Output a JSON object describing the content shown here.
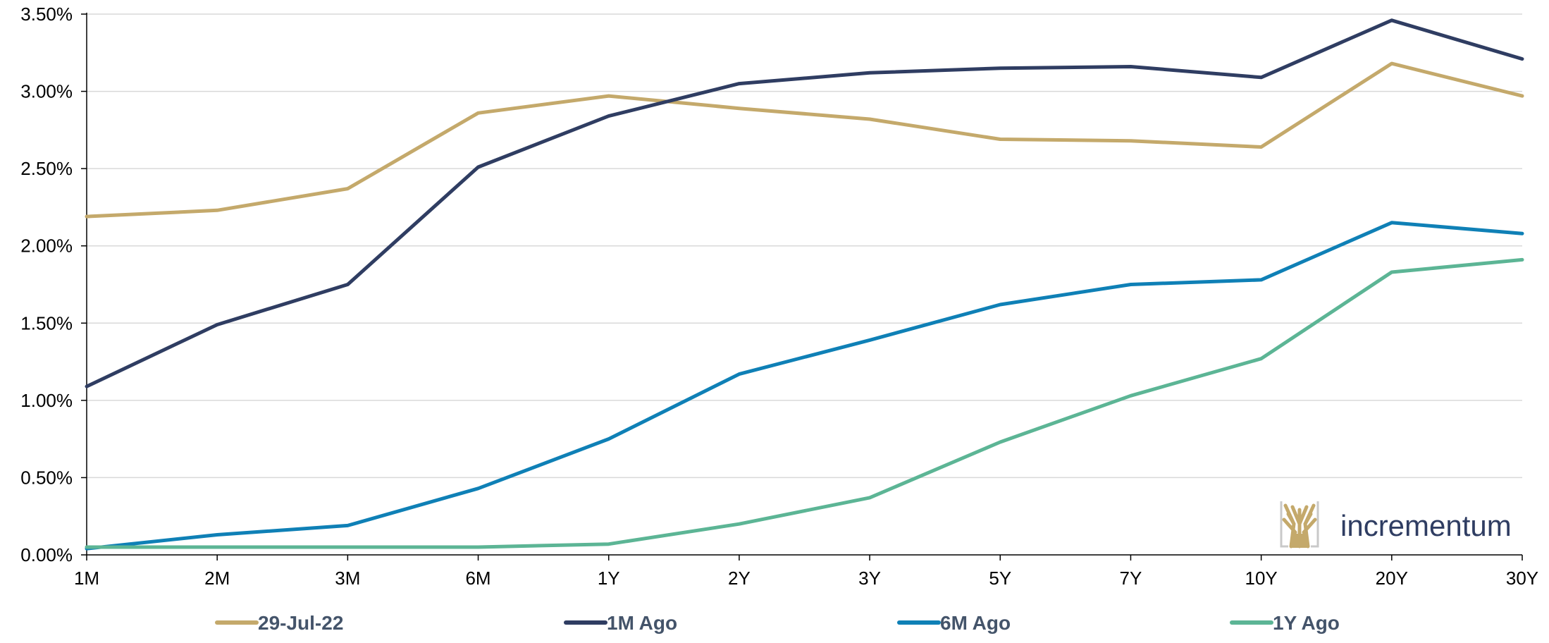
{
  "chart_data": {
    "type": "line",
    "categories": [
      "1M",
      "2M",
      "3M",
      "6M",
      "1Y",
      "2Y",
      "3Y",
      "5Y",
      "7Y",
      "10Y",
      "20Y",
      "30Y"
    ],
    "ylim": [
      0,
      3.5
    ],
    "yticks": [
      0,
      0.5,
      1.0,
      1.5,
      2.0,
      2.5,
      3.0,
      3.5
    ],
    "ytick_labels": [
      "0.00%",
      "0.50%",
      "1.00%",
      "1.50%",
      "2.00%",
      "2.50%",
      "3.00%",
      "3.50%"
    ],
    "grid": "horizontal",
    "legend_position": "bottom",
    "series": [
      {
        "name": "29-Jul-22",
        "color": "#c4a96b",
        "values": [
          2.19,
          2.23,
          2.37,
          2.86,
          2.97,
          2.89,
          2.82,
          2.69,
          2.68,
          2.64,
          3.18,
          2.97
        ]
      },
      {
        "name": "1M Ago",
        "color": "#2f3d62",
        "values": [
          1.09,
          1.49,
          1.75,
          2.51,
          2.84,
          3.05,
          3.12,
          3.15,
          3.16,
          3.09,
          3.46,
          3.21
        ]
      },
      {
        "name": "6M Ago",
        "color": "#0f80b6",
        "values": [
          0.04,
          0.13,
          0.19,
          0.43,
          0.75,
          1.17,
          1.39,
          1.62,
          1.75,
          1.78,
          2.15,
          2.08
        ]
      },
      {
        "name": "1Y Ago",
        "color": "#5cb595",
        "values": [
          0.05,
          0.05,
          0.05,
          0.05,
          0.07,
          0.2,
          0.37,
          0.73,
          1.03,
          1.27,
          1.83,
          1.91
        ]
      }
    ]
  },
  "logo": {
    "text": "incrementum",
    "color": "#2f3d62",
    "accent": "#c4a96b"
  }
}
